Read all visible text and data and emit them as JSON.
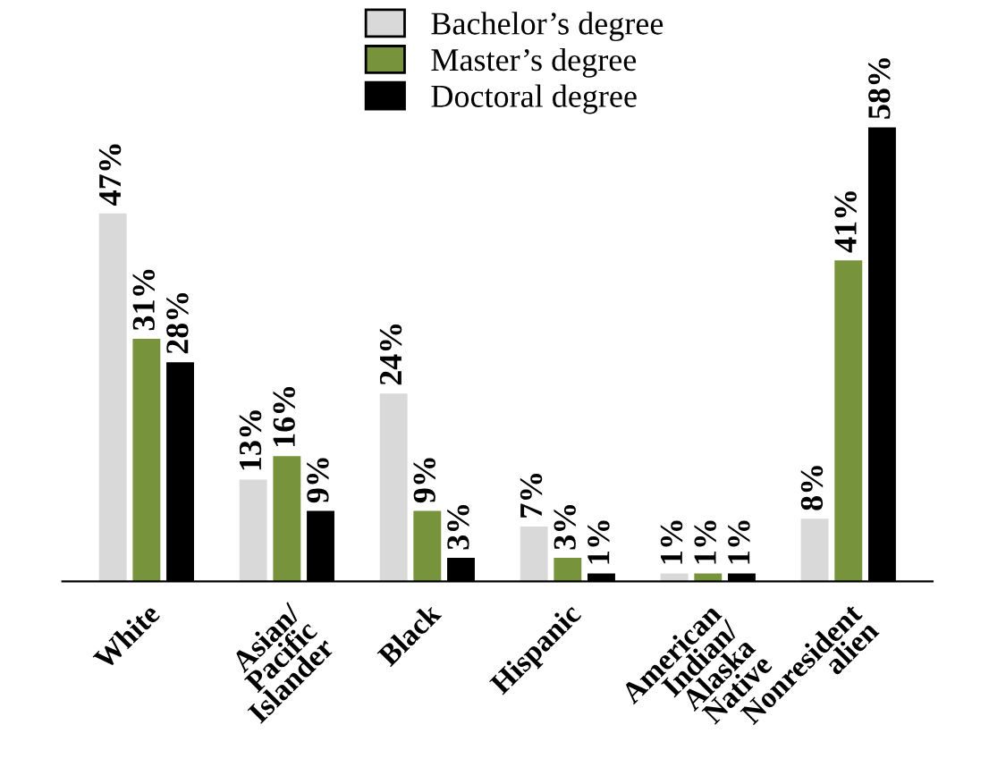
{
  "chart_data": {
    "type": "bar",
    "categories": [
      "White",
      "Asian/\nPacific\nIslander",
      "Black",
      "Hispanic",
      "American\nIndian/\nAlaska\nNative",
      "Nonresident\nalien"
    ],
    "series": [
      {
        "name": "Bachelor’s degree",
        "color": "#d9d9d9",
        "values": [
          47,
          13,
          24,
          7,
          1,
          8
        ],
        "value_labels": [
          "47%",
          "13%",
          "24%",
          "7%",
          "1%",
          "8%"
        ]
      },
      {
        "name": "Master’s degree",
        "color": "#77933c",
        "values": [
          31,
          16,
          9,
          3,
          1,
          41
        ],
        "value_labels": [
          "31%",
          "16%",
          "9%",
          "3%",
          "1%",
          "41%"
        ]
      },
      {
        "name": "Doctoral degree",
        "color": "#000000",
        "values": [
          28,
          9,
          3,
          1,
          1,
          58
        ],
        "value_labels": [
          "28%",
          "9%",
          "3%",
          "1%",
          "1%",
          "58%"
        ]
      }
    ],
    "legend": "top",
    "grid": false
  }
}
